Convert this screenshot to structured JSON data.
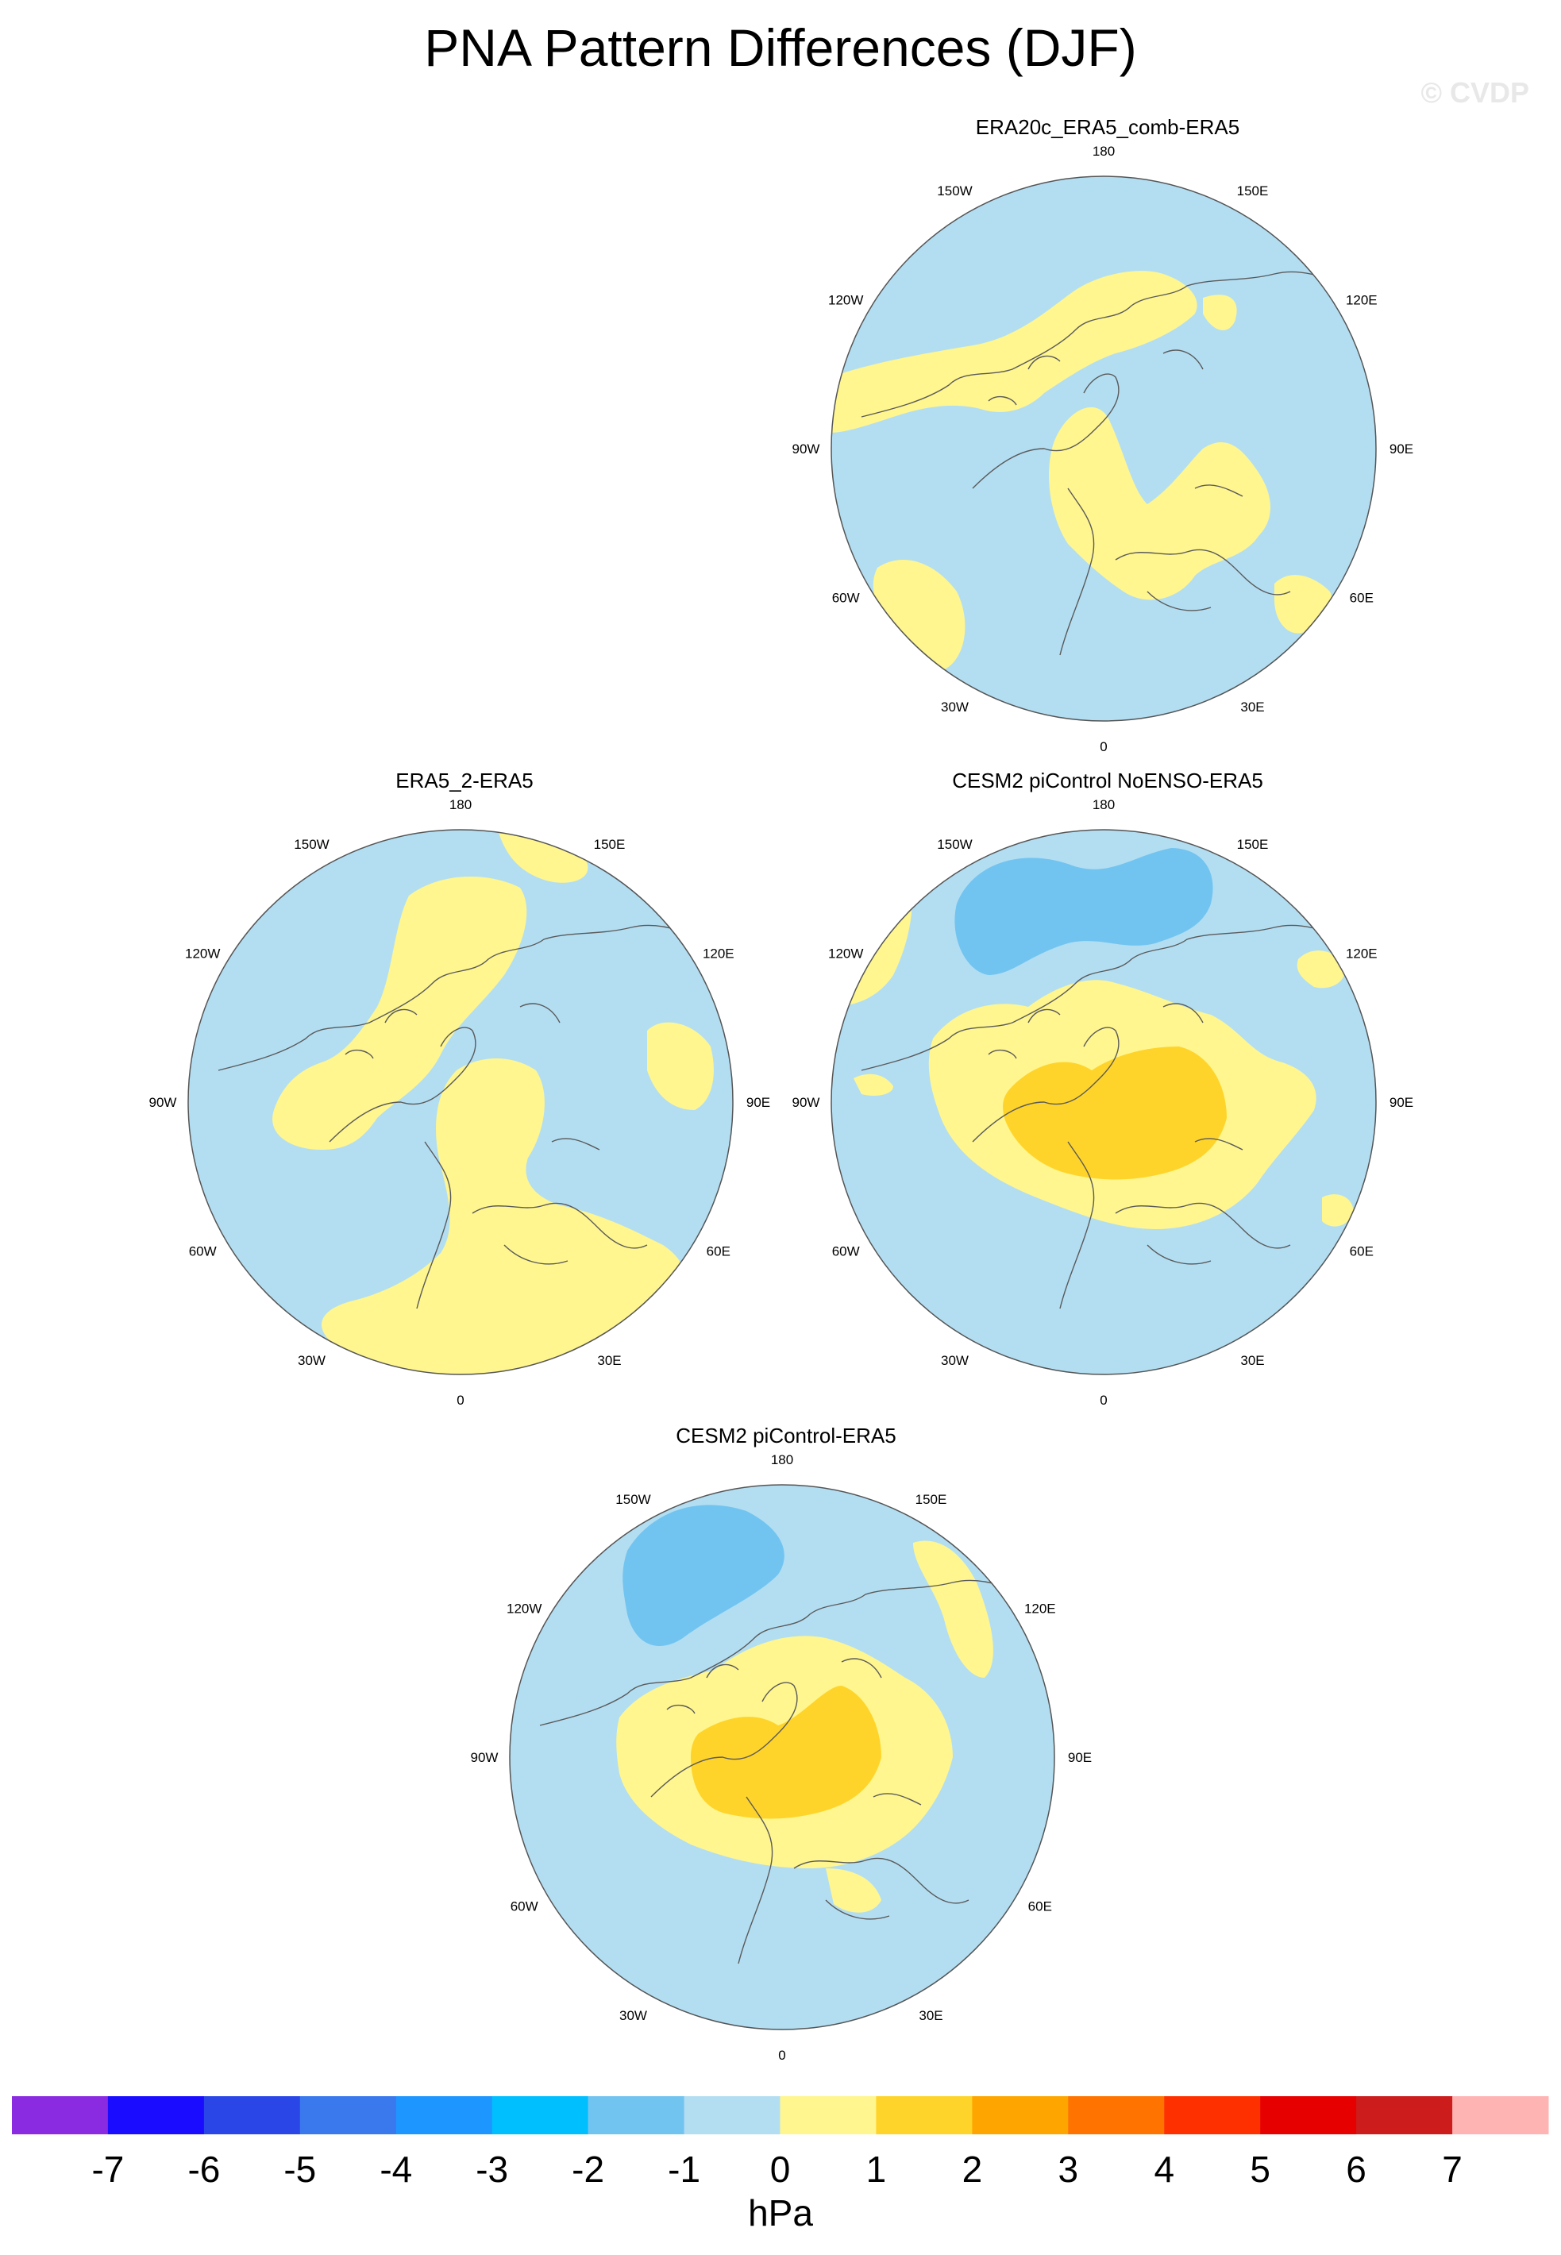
{
  "title": "PNA Pattern Differences (DJF)",
  "watermark": "© CVDP",
  "colors": {
    "ocean_neg1_0": "#b3def2",
    "pos_0_1": "#fff68f",
    "pos_1_2": "#ffd42a",
    "neg_2_1": "#72c4f0",
    "coast": "#5a5a5a"
  },
  "longitude_labels": [
    "180",
    "150E",
    "120E",
    "90E",
    "60E",
    "30E",
    "0",
    "30W",
    "60W",
    "90W",
    "120W",
    "150W"
  ],
  "panels": [
    {
      "id": "era20c",
      "title": "ERA20c_ERA5_comb-ERA5"
    },
    {
      "id": "era5_2",
      "title": "ERA5_2-ERA5"
    },
    {
      "id": "cesm2_noenso",
      "title": "CESM2 piControl NoENSO-ERA5"
    },
    {
      "id": "cesm2",
      "title": "CESM2 piControl-ERA5"
    }
  ],
  "colorbar": {
    "unit": "hPa",
    "ticks": [
      "-7",
      "-6",
      "-5",
      "-4",
      "-3",
      "-2",
      "-1",
      "0",
      "1",
      "2",
      "3",
      "4",
      "5",
      "6",
      "7"
    ],
    "colors": [
      "#8a2be2",
      "#1a0dff",
      "#2a46e6",
      "#3a78ee",
      "#1e96ff",
      "#00bfff",
      "#72c4f0",
      "#b3def2",
      "#fff68f",
      "#ffd42a",
      "#ffa500",
      "#ff7400",
      "#ff3000",
      "#e60000",
      "#cc1c1c",
      "#ffb4b4"
    ]
  }
}
